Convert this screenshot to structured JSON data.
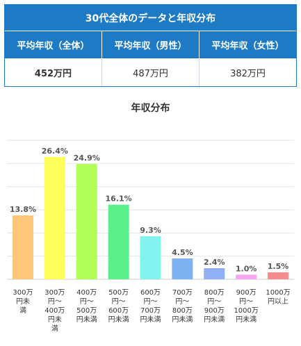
{
  "summary": {
    "title": "30代全体のデータと年収分布",
    "headers": [
      "平均年収（全体）",
      "平均年収（男性）",
      "平均年収（女性）"
    ],
    "values": [
      "452万円",
      "487万円",
      "382万円"
    ]
  },
  "chart_data": {
    "type": "bar",
    "title": "年収分布",
    "categories": [
      [
        "300万",
        "円未",
        "満"
      ],
      [
        "300万",
        "円〜",
        "400万",
        "円未",
        "満"
      ],
      [
        "400万",
        "円〜",
        "500万",
        "円未満"
      ],
      [
        "500万",
        "円〜",
        "600万",
        "円未満"
      ],
      [
        "600万",
        "円〜",
        "700万",
        "円未満"
      ],
      [
        "700万",
        "円〜",
        "800万",
        "円未満"
      ],
      [
        "800万",
        "円〜",
        "900万",
        "円未満"
      ],
      [
        "900万",
        "円〜",
        "1000万",
        "円未満"
      ],
      [
        "1000万",
        "円以上"
      ]
    ],
    "values": [
      13.8,
      26.4,
      24.9,
      16.1,
      9.3,
      4.5,
      2.4,
      1.0,
      1.5
    ],
    "labels": [
      "13.8%",
      "26.4%",
      "24.9%",
      "16.1%",
      "9.3%",
      "4.5%",
      "2.4%",
      "1.0%",
      "1.5%"
    ],
    "colors": [
      "#ffc77a",
      "#ffff5c",
      "#b3ff59",
      "#5cf08a",
      "#82f3ef",
      "#7fb2f0",
      "#8fb1f3",
      "#f7a6f3",
      "#f58d8d"
    ],
    "ylim": [
      0,
      30
    ],
    "grid": true,
    "ylabel": "",
    "xlabel": ""
  }
}
